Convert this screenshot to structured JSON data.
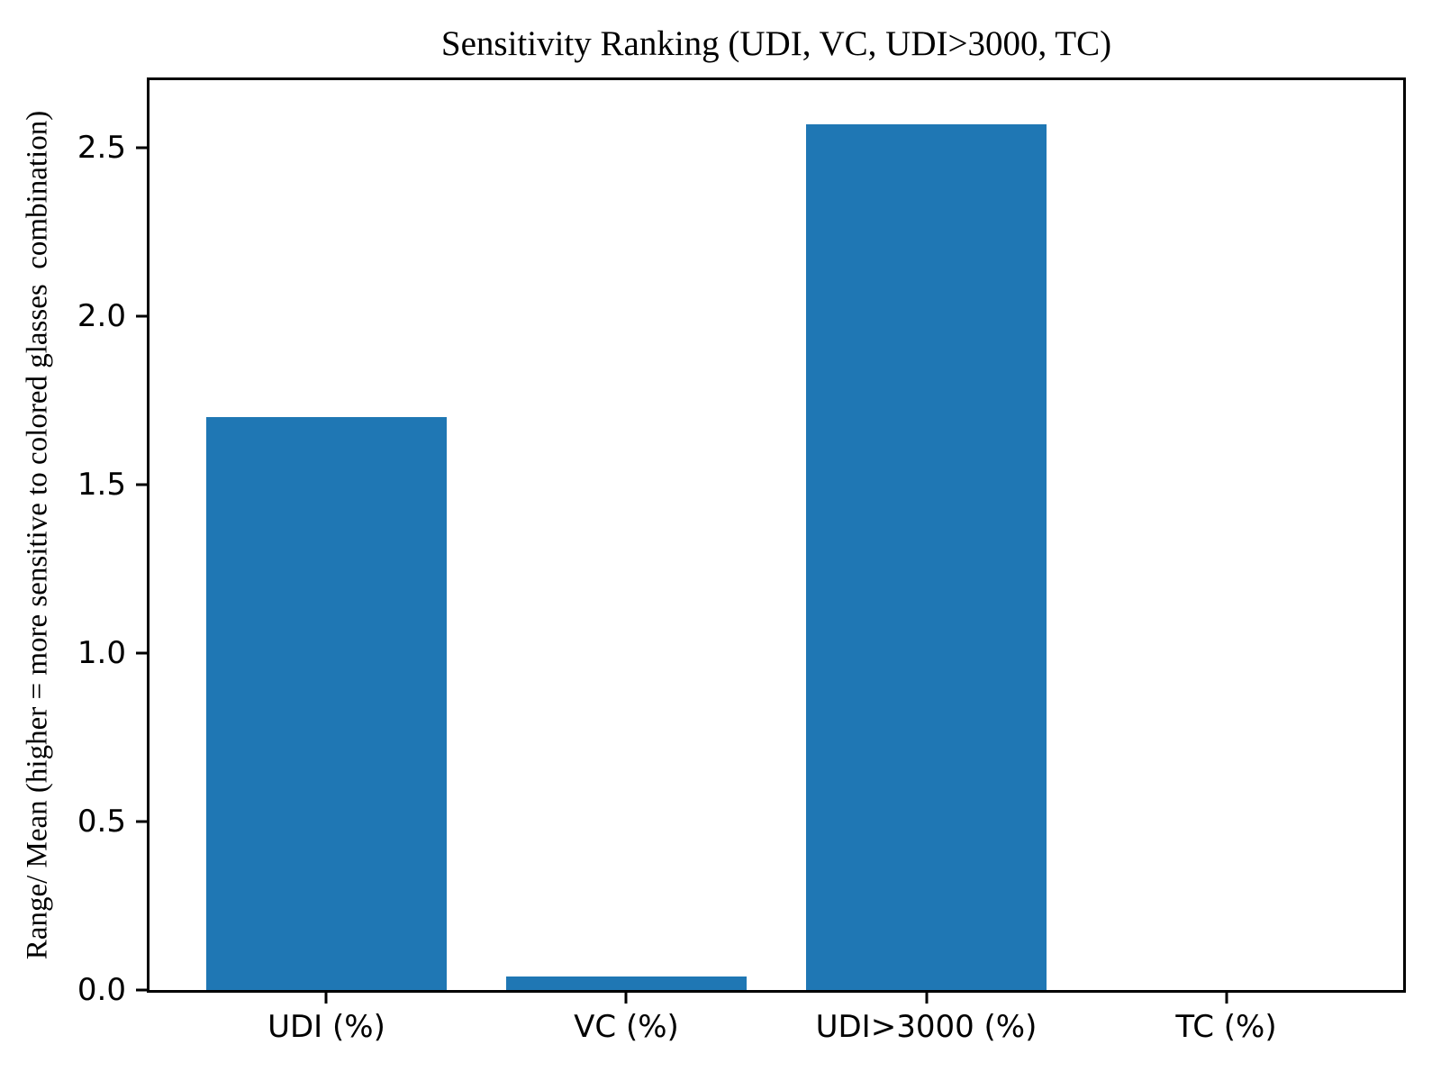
{
  "chart_data": {
    "type": "bar",
    "title": "Sensitivity Ranking (UDI, VC, UDI>3000, TC)",
    "ylabel": "Range/ Mean (higher = more sensitive to colored glasses  combination)",
    "xlabel": "",
    "categories": [
      "UDI (%)",
      "VC (%)",
      "UDI>3000 (%)",
      "TC (%)"
    ],
    "values": [
      1.7,
      0.04,
      2.57,
      0.0
    ],
    "yticks": [
      0.0,
      0.5,
      1.0,
      1.5,
      2.0,
      2.5
    ],
    "ytick_labels": [
      "0.0",
      "0.5",
      "1.0",
      "1.5",
      "2.0",
      "2.5"
    ],
    "ylim": [
      0,
      2.7
    ],
    "bar_color": "#1f77b4",
    "grid": false,
    "legend_position": "none"
  }
}
